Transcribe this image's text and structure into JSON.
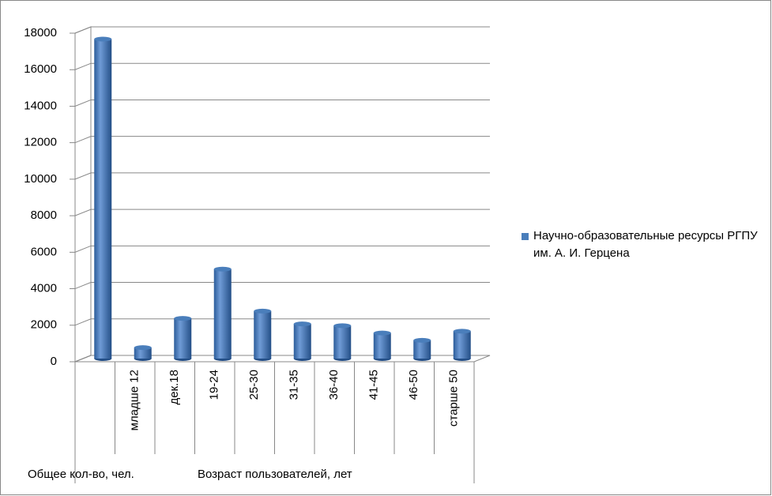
{
  "chart_data": {
    "type": "bar",
    "style": "3d-cylinder",
    "categories": [
      null,
      "младше 12",
      "дек.18",
      "19-24",
      "25-30",
      "31-35",
      "36-40",
      "41-45",
      "46-50",
      "старше 50"
    ],
    "group_labels": [
      "Общее кол-во, чел.",
      "Возраст пользователей, лет"
    ],
    "series": [
      {
        "name": "Научно-образовательные ресурсы РГПУ им.  А. И. Герцена",
        "color": "#4a7ebb",
        "values": [
          17500,
          600,
          2200,
          4900,
          2600,
          1900,
          1800,
          1400,
          1000,
          1500
        ]
      }
    ],
    "ylim": [
      0,
      18000
    ],
    "yticks": [
      0,
      2000,
      4000,
      6000,
      8000,
      10000,
      12000,
      14000,
      16000,
      18000
    ],
    "grid": true,
    "legend": "right"
  }
}
